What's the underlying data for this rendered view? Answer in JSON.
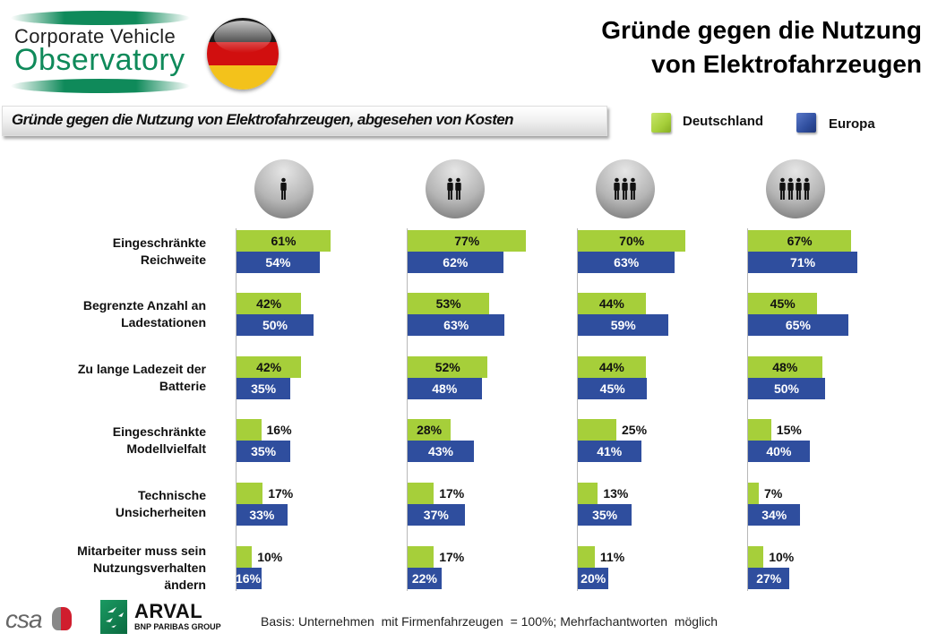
{
  "header": {
    "logo_line1": "Corporate Vehicle",
    "logo_line2": "Observatory",
    "flag": "germany-flag",
    "title_line1": "Gründe gegen die Nutzung",
    "title_line2": "von Elektrofahrzeugen",
    "subtitle": "Gründe gegen die Nutzung von Elektrofahrzeugen, abgesehen von Kosten"
  },
  "colors": {
    "deutschland": "#a6cf3a",
    "europa": "#2f4e9e"
  },
  "footer": {
    "csa_logo": "csa",
    "arval_name": "ARVAL",
    "arval_sub": "BNP PARIBAS GROUP",
    "basis": "Basis: Unternehmen  mit Firmenfahrzeugen  = 100%; Mehrfachantworten  möglich"
  },
  "chart_data": {
    "type": "bar",
    "orientation": "horizontal",
    "title": "Gründe gegen die Nutzung von Elektrofahrzeugen, abgesehen von Kosten",
    "legend": [
      "Deutschland",
      "Europa"
    ],
    "legend_position": "top-right",
    "unit": "%",
    "xlim": [
      0,
      100
    ],
    "categories": [
      [
        "Eingeschränkte",
        "Reichweite"
      ],
      [
        "Begrenzte Anzahl an",
        "Ladestationen"
      ],
      [
        "Zu lange Ladezeit der",
        "Batterie"
      ],
      [
        "Eingeschränkte",
        "Modellvielfalt"
      ],
      [
        "Technische",
        "Unsicherheiten"
      ],
      [
        "Mitarbeiter muss sein",
        "Nutzungsverhalten",
        "ändern"
      ]
    ],
    "panels": [
      {
        "group_icon": "one-person-icon",
        "people": 1,
        "series": [
          {
            "name": "Deutschland",
            "values": [
              61,
              42,
              42,
              16,
              17,
              10
            ]
          },
          {
            "name": "Europa",
            "values": [
              54,
              50,
              35,
              35,
              33,
              16
            ]
          }
        ]
      },
      {
        "group_icon": "two-people-icon",
        "people": 2,
        "series": [
          {
            "name": "Deutschland",
            "values": [
              77,
              53,
              52,
              28,
              17,
              17
            ]
          },
          {
            "name": "Europa",
            "values": [
              62,
              63,
              48,
              43,
              37,
              22
            ]
          }
        ]
      },
      {
        "group_icon": "three-people-icon",
        "people": 3,
        "series": [
          {
            "name": "Deutschland",
            "values": [
              70,
              44,
              44,
              25,
              13,
              11
            ]
          },
          {
            "name": "Europa",
            "values": [
              63,
              59,
              45,
              41,
              35,
              20
            ]
          }
        ]
      },
      {
        "group_icon": "four-people-icon",
        "people": 4,
        "series": [
          {
            "name": "Deutschland",
            "values": [
              67,
              45,
              48,
              15,
              7,
              10
            ]
          },
          {
            "name": "Europa",
            "values": [
              71,
              65,
              50,
              40,
              34,
              27
            ]
          }
        ]
      }
    ]
  }
}
